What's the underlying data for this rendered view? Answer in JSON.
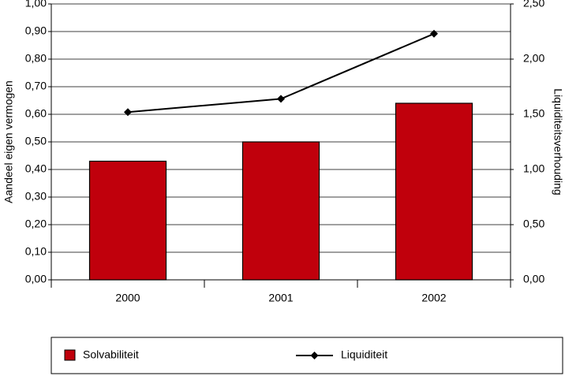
{
  "chart_data": {
    "type": "bar-line",
    "categories": [
      "2000",
      "2001",
      "2002"
    ],
    "y_label": "Aandeel eigen vermogen",
    "y2_label": "Liquiditeitsverhouding",
    "series": [
      {
        "name": "Solvabiliteit",
        "type": "bar",
        "color": "#c0000c",
        "values": [
          0.43,
          0.5,
          0.64
        ]
      },
      {
        "name": "Liquiditeit",
        "type": "line",
        "axis": "y2",
        "color": "#000000",
        "values": [
          1.52,
          1.64,
          2.23
        ]
      }
    ],
    "ylim": [
      0,
      1
    ],
    "yticks": [
      {
        "value": 0,
        "label": "0,00"
      },
      {
        "value": 0.1,
        "label": "0,10"
      },
      {
        "value": 0.2,
        "label": "0,20"
      },
      {
        "value": 0.3,
        "label": "0,30"
      },
      {
        "value": 0.4,
        "label": "0,40"
      },
      {
        "value": 0.5,
        "label": "0,50"
      },
      {
        "value": 0.6,
        "label": "0,60"
      },
      {
        "value": 0.7,
        "label": "0,70"
      },
      {
        "value": 0.8,
        "label": "0,80"
      },
      {
        "value": 0.9,
        "label": "0,90"
      },
      {
        "value": 1,
        "label": "1,00"
      }
    ],
    "y2lim": [
      0,
      2.5
    ],
    "y2ticks": [
      {
        "value": 0,
        "label": "0,00"
      },
      {
        "value": 0.5,
        "label": "0,50"
      },
      {
        "value": 1,
        "label": "1,00"
      },
      {
        "value": 1.5,
        "label": "1,50"
      },
      {
        "value": 2,
        "label": "2,00"
      },
      {
        "value": 2.5,
        "label": "2,50"
      }
    ],
    "grid": true
  }
}
